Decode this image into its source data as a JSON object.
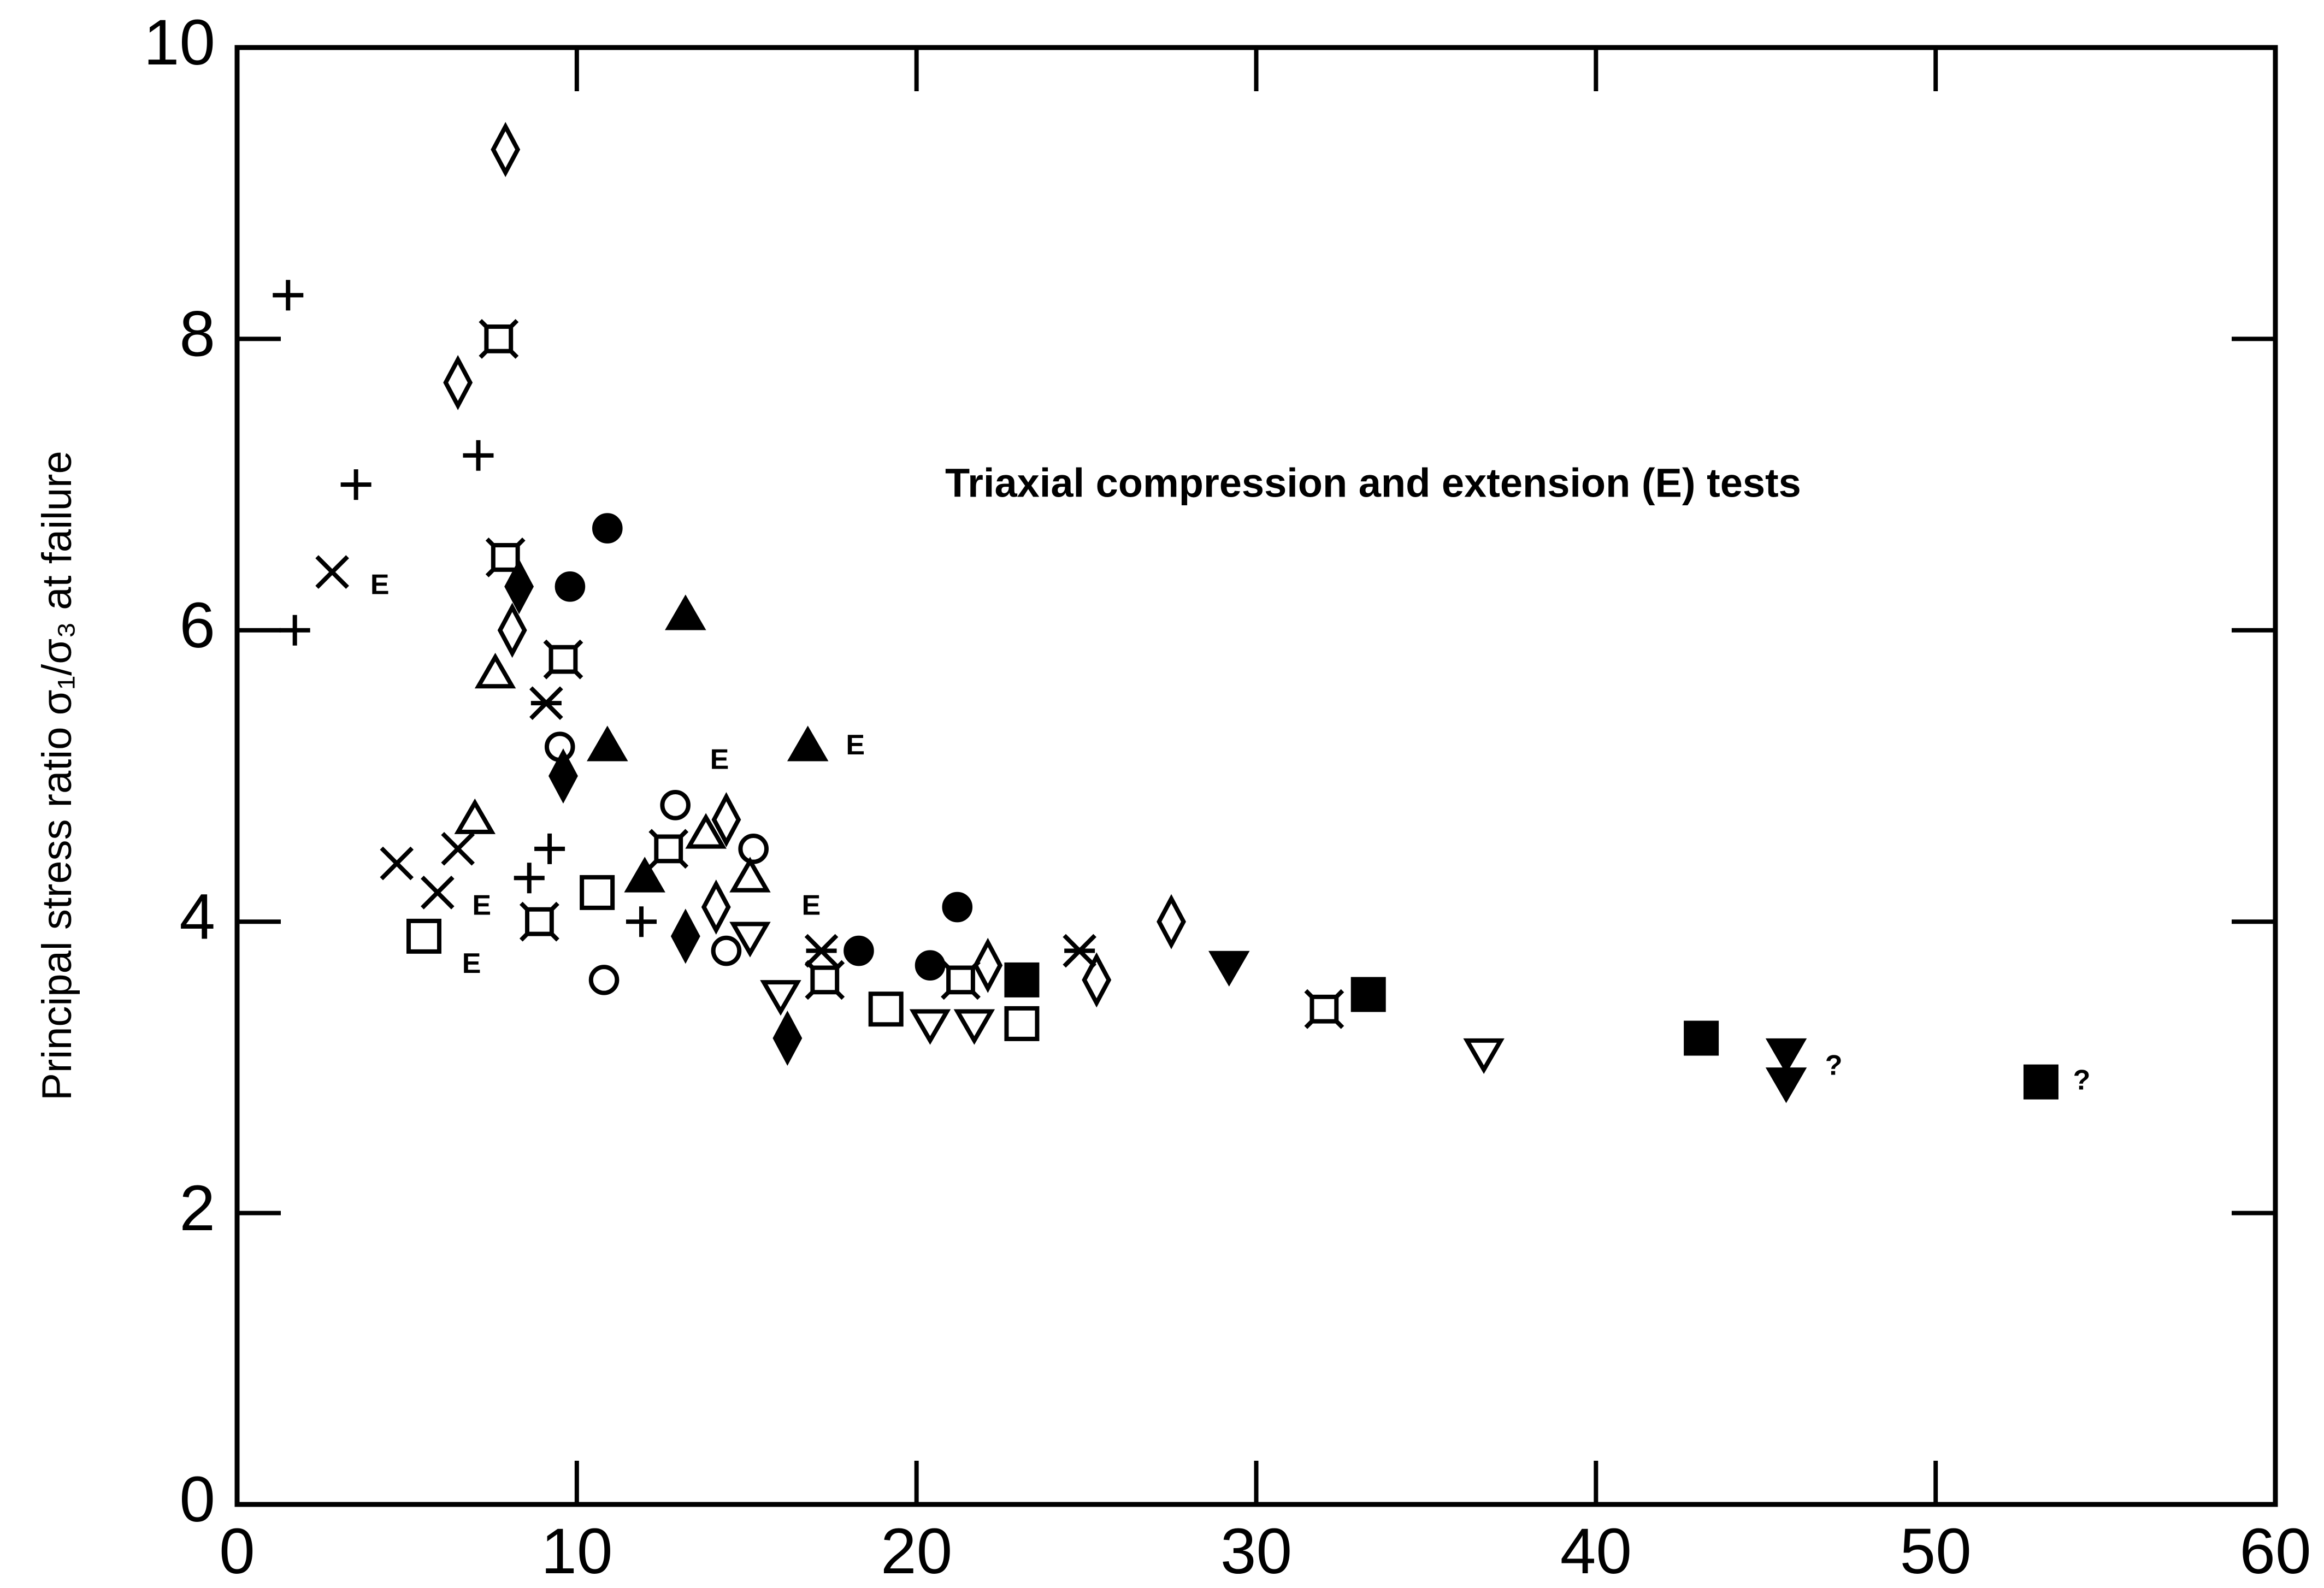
{
  "chart_data": {
    "type": "scatter",
    "ylabel": "Principal stress ratio σ₁/σ₃ at failure",
    "annotation": "Triaxial compression and extension (E) tests",
    "xlim": [
      0,
      60
    ],
    "ylim": [
      0,
      10
    ],
    "xticks": [
      0,
      10,
      20,
      30,
      40,
      50,
      60
    ],
    "yticks": [
      0,
      2,
      4,
      6,
      8,
      10
    ],
    "color": "#000000",
    "series": [
      {
        "marker": "plus",
        "filled": false,
        "color": "#000000",
        "x": [
          1.5,
          3.5,
          1.7,
          7.1,
          9.2,
          8.6,
          11.9
        ],
        "values": [
          8.3,
          7.0,
          6.0,
          7.2,
          4.5,
          4.3,
          4.0
        ]
      },
      {
        "marker": "cross",
        "filled": false,
        "color": "#000000",
        "x": [
          2.8,
          4.7,
          6.5,
          5.9
        ],
        "values": [
          6.4,
          4.4,
          4.5,
          4.2
        ]
      },
      {
        "marker": "diamond",
        "filled": false,
        "color": "#000000",
        "x": [
          7.9,
          6.5,
          8.1,
          14.4,
          14.1,
          22.1,
          25.3,
          27.5
        ],
        "values": [
          9.3,
          7.7,
          6.0,
          4.7,
          4.1,
          3.7,
          3.6,
          4.0
        ]
      },
      {
        "marker": "square-corners",
        "filled": false,
        "color": "#000000",
        "x": [
          7.7,
          7.9,
          9.6,
          8.9,
          12.7,
          17.3,
          21.3,
          32.0
        ],
        "values": [
          8.0,
          6.5,
          5.8,
          4.0,
          4.5,
          3.6,
          3.6,
          3.4
        ]
      },
      {
        "marker": "diamond",
        "filled": true,
        "color": "#000000",
        "x": [
          8.3,
          9.6,
          13.2,
          16.2
        ],
        "values": [
          6.3,
          5.0,
          3.9,
          3.2
        ]
      },
      {
        "marker": "circle",
        "filled": true,
        "color": "#000000",
        "x": [
          10.9,
          9.8,
          18.3,
          20.4,
          21.2
        ],
        "values": [
          6.7,
          6.3,
          3.8,
          3.7,
          4.1
        ]
      },
      {
        "marker": "triangle-up",
        "filled": false,
        "color": "#000000",
        "x": [
          7.6,
          7.0,
          15.1,
          13.8
        ],
        "values": [
          5.7,
          4.7,
          4.3,
          4.6
        ]
      },
      {
        "marker": "triangle-up",
        "filled": true,
        "color": "#000000",
        "x": [
          13.2,
          10.9,
          12.0,
          16.8
        ],
        "values": [
          6.1,
          5.2,
          4.3,
          5.2
        ]
      },
      {
        "marker": "asterisk",
        "filled": false,
        "color": "#000000",
        "x": [
          9.1,
          17.2,
          24.8
        ],
        "values": [
          5.5,
          3.8,
          3.8
        ]
      },
      {
        "marker": "circle",
        "filled": false,
        "color": "#000000",
        "x": [
          9.5,
          10.8,
          12.9,
          15.2,
          14.4
        ],
        "values": [
          5.2,
          3.6,
          4.8,
          4.5,
          3.8
        ]
      },
      {
        "marker": "square",
        "filled": false,
        "color": "#000000",
        "x": [
          5.5,
          10.6,
          19.1,
          23.1
        ],
        "values": [
          3.9,
          4.2,
          3.4,
          3.3
        ]
      },
      {
        "marker": "triangle-down",
        "filled": false,
        "color": "#000000",
        "x": [
          15.1,
          16.0,
          20.4,
          21.7,
          36.7
        ],
        "values": [
          3.9,
          3.5,
          3.3,
          3.3,
          3.1
        ]
      },
      {
        "marker": "square",
        "filled": true,
        "color": "#000000",
        "x": [
          23.1,
          33.3,
          43.1,
          53.1
        ],
        "values": [
          3.6,
          3.5,
          3.2,
          2.9
        ]
      },
      {
        "marker": "triangle-down",
        "filled": true,
        "color": "#000000",
        "x": [
          29.2,
          45.6,
          45.6
        ],
        "values": [
          3.7,
          3.1,
          2.9
        ]
      }
    ],
    "point_notes": [
      {
        "text": "E",
        "x": 4.2,
        "y": 6.3
      },
      {
        "text": "E",
        "x": 7.2,
        "y": 4.1
      },
      {
        "text": "E",
        "x": 6.9,
        "y": 3.7
      },
      {
        "text": "E",
        "x": 14.2,
        "y": 5.1
      },
      {
        "text": "E",
        "x": 18.2,
        "y": 5.2
      },
      {
        "text": "E",
        "x": 16.9,
        "y": 4.1
      },
      {
        "text": "?",
        "x": 47.0,
        "y": 3.0
      },
      {
        "text": "?",
        "x": 54.3,
        "y": 2.9
      }
    ]
  }
}
